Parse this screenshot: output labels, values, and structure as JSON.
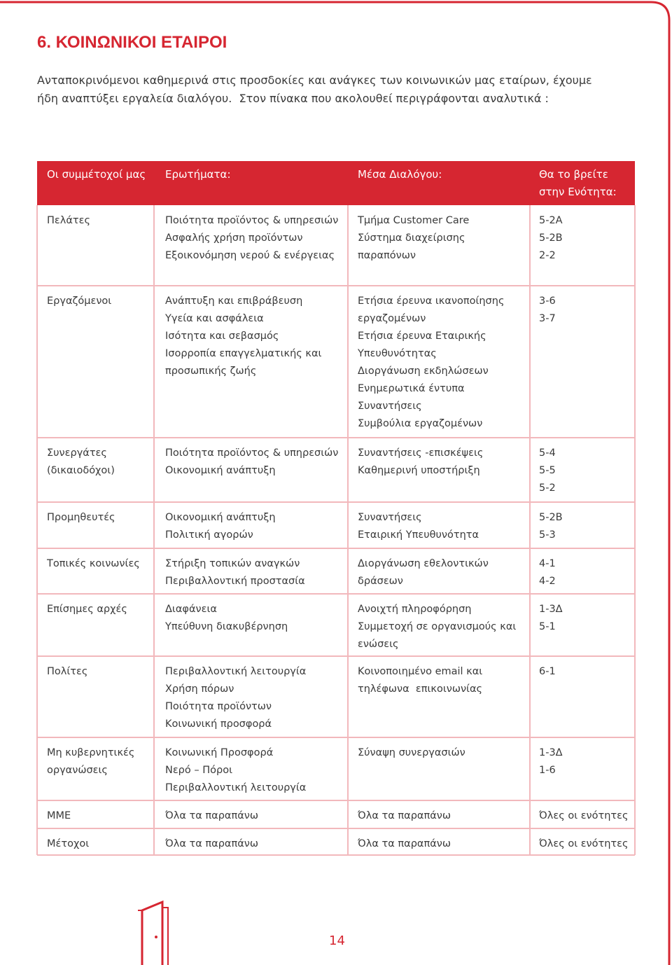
{
  "header": {
    "title": "6. ΚΟΙΝΩΝΙΚΟΙ ΕΤΑΙΡΟΙ",
    "intro": [
      "Ανταποκρινόμενοι καθημερινά στις προσδοκίες και ανάγκες των κοινωνικών μας εταίρων, έχουμε",
      "ήδη αναπτύξει εργαλεία διαλόγου.  Στον πίνακα που ακολουθεί περιγράφονται αναλυτικά :"
    ]
  },
  "table": {
    "headers": [
      [
        "Οι συμμέτοχοί μας"
      ],
      [
        "Ερωτήματα:"
      ],
      [
        "Μέσα Διαλόγου:"
      ],
      [
        "Θα το βρείτε",
        "στην Ενότητα:"
      ]
    ],
    "rows": [
      [
        [
          "Πελάτες"
        ],
        [
          "Ποιότητα προϊόντος & υπηρεσιών",
          "Ασφαλής χρήση προϊόντων",
          "Εξοικονόμηση νερού & ενέργειας"
        ],
        [
          "Τμήμα Customer Care",
          "Σύστημα διαχείρισης",
          "παραπόνων"
        ],
        [
          "5-2Α",
          "5-2Β",
          "2-2"
        ]
      ],
      [
        [
          "Εργαζόμενοι"
        ],
        [
          "Ανάπτυξη και επιβράβευση",
          "Υγεία και ασφάλεια",
          "Ισότητα και σεβασμός",
          "Ισορροπία επαγγελματικής και",
          "προσωπικής ζωής"
        ],
        [
          "Ετήσια έρευνα ικανοποίησης",
          "εργαζομένων",
          "Ετήσια έρευνα Εταιρικής",
          "Υπευθυνότητας",
          "Διοργάνωση εκδηλώσεων",
          "Ενημερωτικά έντυπα",
          "Συναντήσεις",
          "Συμβούλια εργαζομένων"
        ],
        [
          "3-6",
          "3-7"
        ]
      ],
      [
        [
          "Συνεργάτες",
          "(δικαιοδόχοι)"
        ],
        [
          "Ποιότητα προϊόντος & υπηρεσιών",
          "Οικονομική ανάπτυξη"
        ],
        [
          "Συναντήσεις -επισκέψεις",
          "Καθημερινή υποστήριξη"
        ],
        [
          "5-4",
          "5-5",
          "5-2"
        ]
      ],
      [
        [
          "Προμηθευτές"
        ],
        [
          "Οικονομική ανάπτυξη",
          "Πολιτική αγορών"
        ],
        [
          "Συναντήσεις",
          "Εταιρική Υπευθυνότητα"
        ],
        [
          "5-2Β",
          "5-3"
        ]
      ],
      [
        [
          "Τοπικές κοινωνίες"
        ],
        [
          "Στήριξη τοπικών αναγκών",
          "Περιβαλλοντική προστασία"
        ],
        [
          "Διοργάνωση εθελοντικών",
          "δράσεων"
        ],
        [
          "4-1",
          "4-2"
        ]
      ],
      [
        [
          "Επίσημες αρχές"
        ],
        [
          "Διαφάνεια",
          "Υπεύθυνη διακυβέρνηση"
        ],
        [
          "Ανοιχτή πληροφόρηση",
          "Συμμετοχή σε οργανισμούς και",
          "ενώσεις"
        ],
        [
          "1-3Δ",
          "5-1"
        ]
      ],
      [
        [
          "Πολίτες"
        ],
        [
          "Περιβαλλοντική λειτουργία",
          "Χρήση πόρων",
          "Ποιότητα προϊόντων",
          "Κοινωνική προσφορά"
        ],
        [
          "Κοινοποιημένο email και",
          "τηλέφωνα  επικοινωνίας"
        ],
        [
          "6-1"
        ]
      ],
      [
        [
          "Μη κυβερνητικές",
          "οργανώσεις"
        ],
        [
          "Κοινωνική Προσφορά",
          "Νερό – Πόροι",
          "Περιβαλλοντική λειτουργία"
        ],
        [
          "Σύναψη συνεργασιών"
        ],
        [
          "1-3Δ",
          "1-6"
        ]
      ],
      [
        [
          "ΜΜΕ"
        ],
        [
          "Όλα τα παραπάνω"
        ],
        [
          "Όλα τα παραπάνω"
        ],
        [
          "Όλες οι ενότητες"
        ]
      ],
      [
        [
          "Μέτοχοι"
        ],
        [
          "Όλα τα παραπάνω"
        ],
        [
          "Όλα τα παραπάνω"
        ],
        [
          "Όλες οι ενότητες"
        ]
      ]
    ]
  },
  "footer": {
    "page_number": "14"
  }
}
